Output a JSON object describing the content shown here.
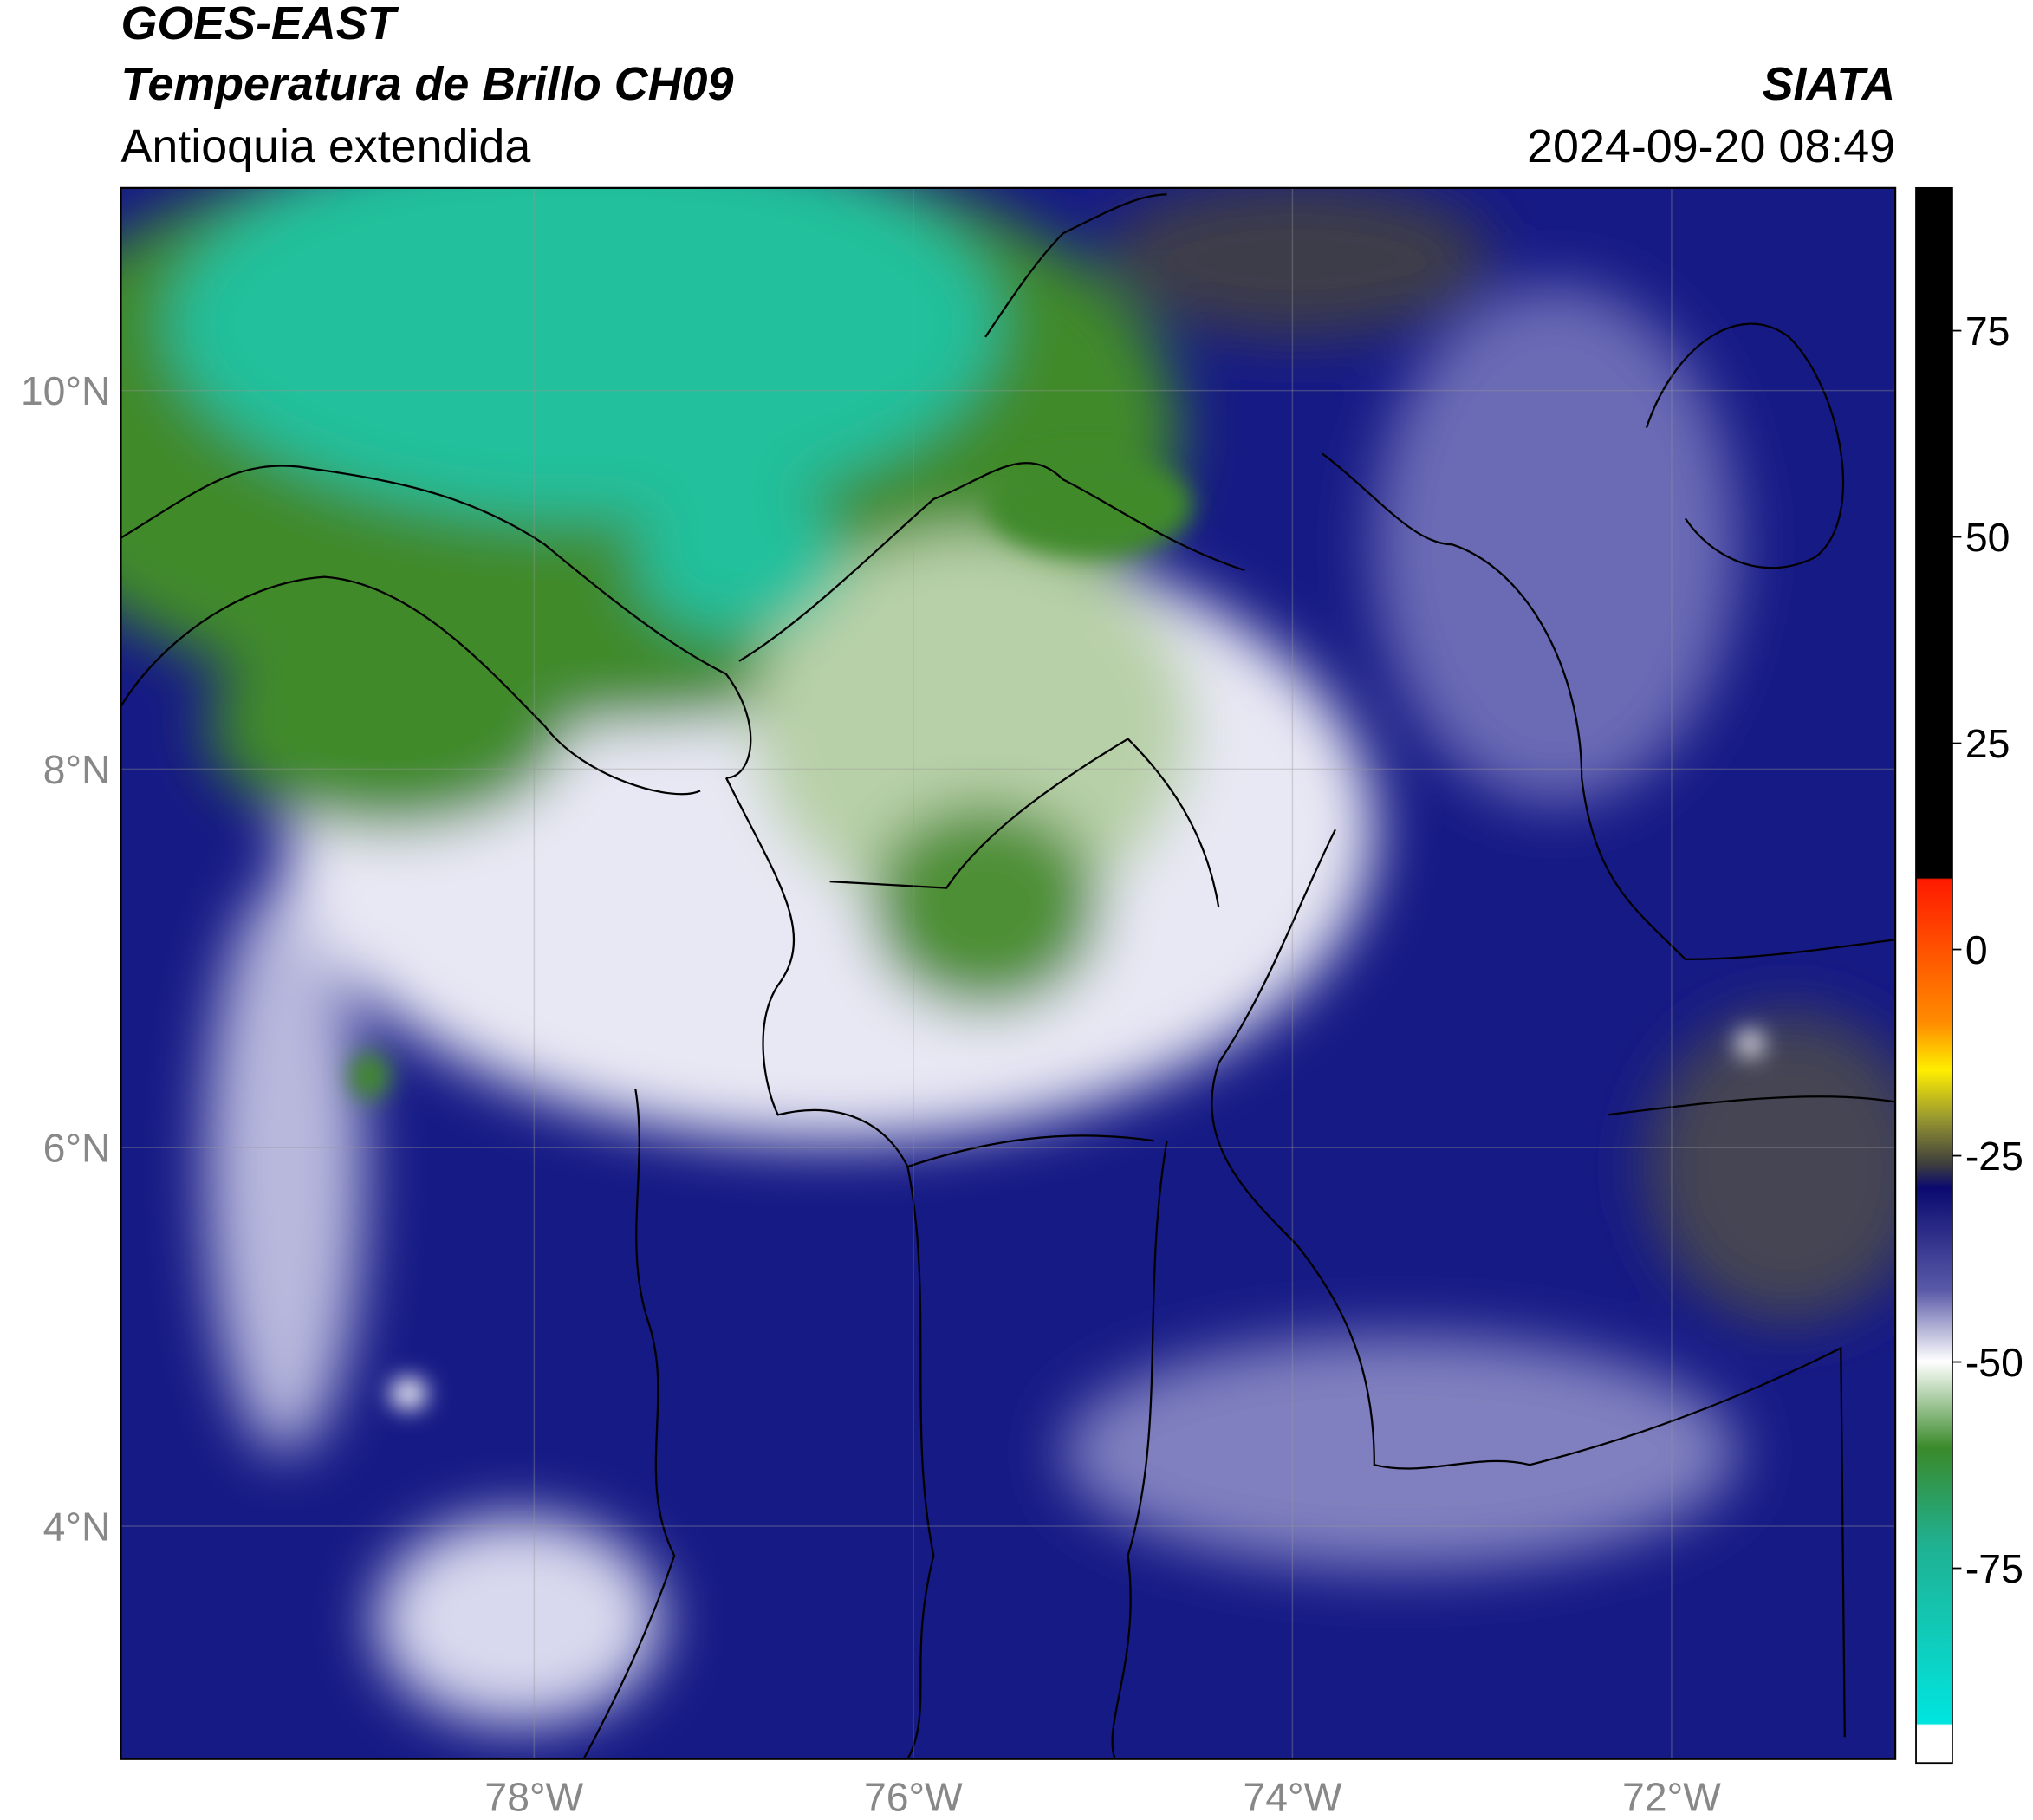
{
  "header": {
    "title": "GOES-EAST",
    "subtitle": "Temperatura de Brillo CH09",
    "region": "Antioquia extendida",
    "source": "SIATA",
    "datetime": "2024-09-20 08:49"
  },
  "map": {
    "lonlim": [
      -80.18,
      -70.82
    ],
    "latlim": [
      2.77,
      11.07
    ],
    "lat_ticks": [
      {
        "value": 10,
        "label": "10°N"
      },
      {
        "value": 8,
        "label": "8°N"
      },
      {
        "value": 6,
        "label": "6°N"
      },
      {
        "value": 4,
        "label": "4°N"
      }
    ],
    "lon_ticks": [
      {
        "value": -78,
        "label": "78°W"
      },
      {
        "value": -76,
        "label": "76°W"
      },
      {
        "value": -74,
        "label": "74°W"
      },
      {
        "value": -72,
        "label": "72°W"
      }
    ]
  },
  "colorbar": {
    "lim": [
      -98.6,
      92.3
    ],
    "ticks": [
      75,
      50,
      25,
      0,
      -25,
      -50,
      -75
    ]
  }
}
